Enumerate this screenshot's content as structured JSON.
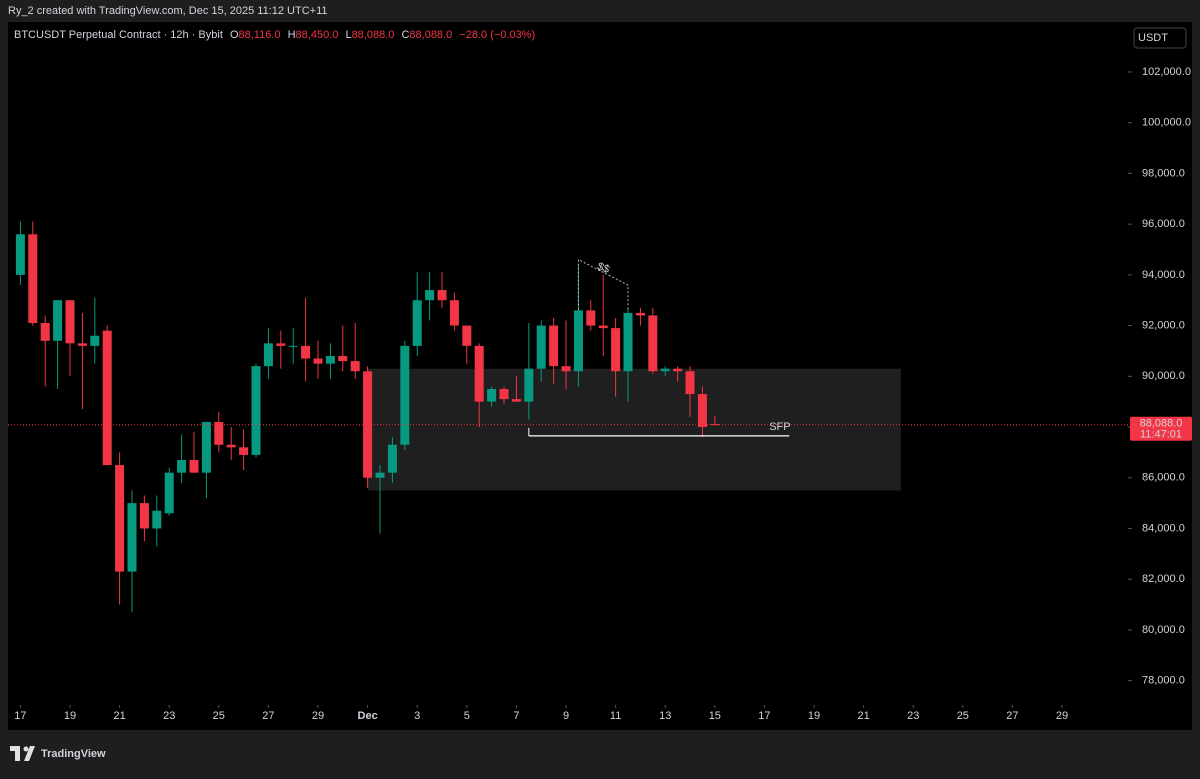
{
  "header": {
    "caption": "Ry_2 created with TradingView.com, Dec 15, 2025 11:12 UTC+11",
    "symbol": "BTCUSDT Perpetual Contract · 12h · Bybit",
    "ohlc": [
      {
        "key": "O",
        "value": "88,116.0"
      },
      {
        "key": "H",
        "value": "88,450.0"
      },
      {
        "key": "L",
        "value": "88,088.0"
      },
      {
        "key": "C",
        "value": "88,088.0"
      }
    ],
    "change": "−28.0 (−0.03%)",
    "currency_button": "USDT"
  },
  "price_tag": {
    "price": "88,088.0",
    "countdown": "11:47:01"
  },
  "brand": "TradingView",
  "chart_data": {
    "type": "candlestick",
    "up_color": "#089981",
    "down_color": "#f23645",
    "x": [
      0,
      0.5,
      1,
      1.5,
      2,
      2.5,
      3,
      3.5,
      4,
      4.5,
      5,
      5.5,
      6,
      6.5,
      7,
      7.5,
      8,
      8.5,
      9,
      9.5,
      10,
      10.5,
      11,
      11.5,
      12,
      12.5,
      13,
      13.5,
      14,
      14.5,
      15,
      15.5,
      16,
      16.5,
      17,
      17.5,
      18,
      18.5,
      19,
      19.5,
      20,
      20.5,
      21,
      21.5,
      22,
      22.5,
      23,
      23.5,
      24,
      24.5,
      25,
      25.5,
      26,
      26.5,
      27,
      27.5,
      28
    ],
    "open": [
      94000,
      95600,
      92100,
      91400,
      93000,
      91300,
      91200,
      91800,
      86500,
      82300,
      85000,
      84000,
      84600,
      86200,
      86700,
      86200,
      88200,
      87300,
      87200,
      86900,
      90400,
      91300,
      91200,
      91200,
      90700,
      90500,
      90800,
      90600,
      90200,
      86000,
      86200,
      87300,
      91200,
      93000,
      93400,
      93000,
      92000,
      91200,
      89000,
      89500,
      89100,
      89000,
      90300,
      92000,
      90400,
      90200,
      92600,
      92000,
      91900,
      90200,
      92500,
      92400,
      90200,
      90300,
      90200,
      89300,
      88116
    ],
    "high": [
      96100,
      96100,
      92400,
      93000,
      93000,
      92500,
      93100,
      92000,
      87000,
      85500,
      85300,
      85300,
      86400,
      87700,
      87800,
      88100,
      88600,
      88000,
      87900,
      90500,
      91900,
      91800,
      91900,
      93100,
      91400,
      91300,
      92000,
      92100,
      90400,
      86500,
      87600,
      91400,
      94100,
      94100,
      94100,
      93300,
      92000,
      91300,
      89600,
      89600,
      90000,
      92100,
      92200,
      92300,
      92200,
      94400,
      93000,
      94000,
      92300,
      92700,
      92700,
      92700,
      90400,
      90400,
      90400,
      89600,
      88450
    ],
    "low": [
      93600,
      92000,
      89600,
      89500,
      90000,
      88700,
      90500,
      86500,
      81000,
      80700,
      83500,
      83300,
      84500,
      85800,
      86200,
      85200,
      87000,
      86700,
      86300,
      86800,
      89900,
      90300,
      90500,
      89800,
      89900,
      89900,
      90200,
      89900,
      85600,
      83800,
      85800,
      87100,
      90800,
      92200,
      92700,
      91800,
      90500,
      88000,
      88800,
      88900,
      89000,
      88300,
      89800,
      89700,
      89500,
      89600,
      91800,
      90800,
      89200,
      89000,
      92000,
      90100,
      90000,
      89800,
      88400,
      87600,
      88088
    ],
    "close": [
      95600,
      92100,
      91400,
      93000,
      91300,
      91200,
      91600,
      86500,
      82300,
      85000,
      84000,
      84700,
      86200,
      86700,
      86200,
      88200,
      87300,
      87200,
      86900,
      90400,
      91300,
      91200,
      91200,
      90700,
      90500,
      90800,
      90600,
      90200,
      86000,
      86200,
      87300,
      91200,
      93000,
      93400,
      93000,
      92000,
      91200,
      89000,
      89500,
      89100,
      89000,
      90300,
      92000,
      90400,
      90200,
      92600,
      92000,
      91900,
      90200,
      92500,
      92400,
      90200,
      90300,
      90200,
      89300,
      88000,
      88088
    ],
    "xlim": [
      -0.5,
      44.66
    ],
    "xticks": [
      {
        "value": 0,
        "label": "17"
      },
      {
        "value": 2,
        "label": "19"
      },
      {
        "value": 4,
        "label": "21"
      },
      {
        "value": 6,
        "label": "23"
      },
      {
        "value": 8,
        "label": "25"
      },
      {
        "value": 10,
        "label": "27"
      },
      {
        "value": 12,
        "label": "29"
      },
      {
        "value": 14,
        "label": "Dec"
      },
      {
        "value": 16,
        "label": "3"
      },
      {
        "value": 18,
        "label": "5"
      },
      {
        "value": 20,
        "label": "7"
      },
      {
        "value": 22,
        "label": "9"
      },
      {
        "value": 24,
        "label": "11"
      },
      {
        "value": 26,
        "label": "13"
      },
      {
        "value": 28,
        "label": "15"
      },
      {
        "value": 30,
        "label": "17"
      },
      {
        "value": 32,
        "label": "19"
      },
      {
        "value": 34,
        "label": "21"
      },
      {
        "value": 36,
        "label": "23"
      },
      {
        "value": 38,
        "label": "25"
      },
      {
        "value": 40,
        "label": "27"
      },
      {
        "value": 42,
        "label": "29"
      }
    ],
    "ylim": [
      77040,
      103970
    ],
    "yticks": [
      {
        "value": 78000,
        "label": "78,000.0"
      },
      {
        "value": 80000,
        "label": "80,000.0"
      },
      {
        "value": 82000,
        "label": "82,000.0"
      },
      {
        "value": 84000,
        "label": "84,000.0"
      },
      {
        "value": 86000,
        "label": "86,000.0"
      },
      {
        "value": 88000,
        "label": "88,000.0"
      },
      {
        "value": 90000,
        "label": "90,000.0"
      },
      {
        "value": 92000,
        "label": "92,000.0"
      },
      {
        "value": 94000,
        "label": "94,000.0"
      },
      {
        "value": 96000,
        "label": "96,000.0"
      },
      {
        "value": 98000,
        "label": "98,000.0"
      },
      {
        "value": 100000,
        "label": "100,000.0"
      },
      {
        "value": 102000,
        "label": "102,000.0"
      }
    ],
    "zone": {
      "x": [
        14,
        35.5
      ],
      "y": [
        85500,
        90300
      ]
    },
    "sfp": {
      "label": "SFP",
      "x": [
        20.5,
        31
      ],
      "y": 87650
    },
    "liquidity": {
      "label": "$$",
      "x": [
        22.5,
        24.5
      ],
      "y": [
        94600,
        93600
      ]
    }
  }
}
